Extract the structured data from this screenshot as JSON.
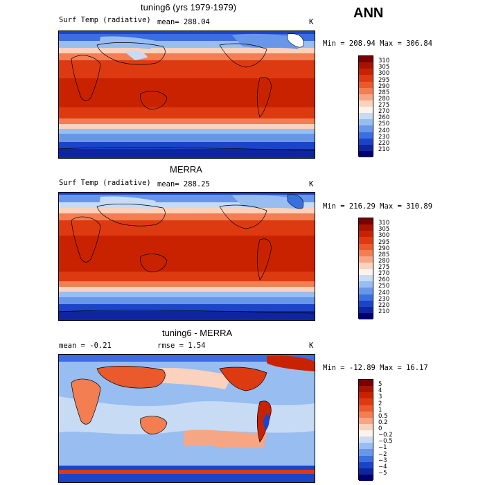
{
  "season": "ANN",
  "panels": [
    {
      "title": "tuning6 (yrs 1979-1979)",
      "left_text": "Surf Temp (radiative)",
      "mean_text": "mean= 288.04",
      "unit": "K",
      "minmax": "Min = 208.94 Max = 306.84",
      "colorbar": {
        "labels": [
          "310",
          "305",
          "300",
          "295",
          "290",
          "285",
          "280",
          "275",
          "270",
          "260",
          "250",
          "240",
          "230",
          "220",
          "210"
        ],
        "colors": [
          "#7a0000",
          "#a81300",
          "#c92200",
          "#dd3a12",
          "#ea5a2c",
          "#f27e52",
          "#f7a685",
          "#fbd2bd",
          "#fdf3ea",
          "#c7dbf5",
          "#98bdf0",
          "#6897ea",
          "#3b6ee0",
          "#1c44c8",
          "#0f25a0",
          "#000070"
        ]
      }
    },
    {
      "title": "MERRA",
      "left_text": "Surf Temp (radiative)",
      "mean_text": "mean= 288.25",
      "unit": "K",
      "minmax": "Min = 216.29 Max = 310.89",
      "colorbar": {
        "labels": [
          "310",
          "305",
          "300",
          "295",
          "290",
          "285",
          "280",
          "275",
          "270",
          "260",
          "250",
          "240",
          "230",
          "220",
          "210"
        ],
        "colors": [
          "#7a0000",
          "#a81300",
          "#c92200",
          "#dd3a12",
          "#ea5a2c",
          "#f27e52",
          "#f7a685",
          "#fbd2bd",
          "#fdf3ea",
          "#c7dbf5",
          "#98bdf0",
          "#6897ea",
          "#3b6ee0",
          "#1c44c8",
          "#0f25a0",
          "#000070"
        ]
      }
    },
    {
      "title": "tuning6 - MERRA",
      "left_text": "mean =   -0.21",
      "mean_text": "rmse =    1.54",
      "unit": "K",
      "minmax": "Min = -12.89 Max =  16.17",
      "colorbar": {
        "labels": [
          "5",
          "4",
          "3",
          "2",
          "1",
          "0.5",
          "0.2",
          "0",
          "−0.2",
          "−0.5",
          "−1",
          "−2",
          "−3",
          "−4",
          "−5"
        ],
        "colors": [
          "#7a0000",
          "#a81300",
          "#c92200",
          "#dd3a12",
          "#ea5a2c",
          "#f27e52",
          "#f7a685",
          "#fbd2bd",
          "#fdf3ea",
          "#c7dbf5",
          "#98bdf0",
          "#6897ea",
          "#3b6ee0",
          "#1c44c8",
          "#0f25a0",
          "#000070"
        ]
      }
    }
  ]
}
